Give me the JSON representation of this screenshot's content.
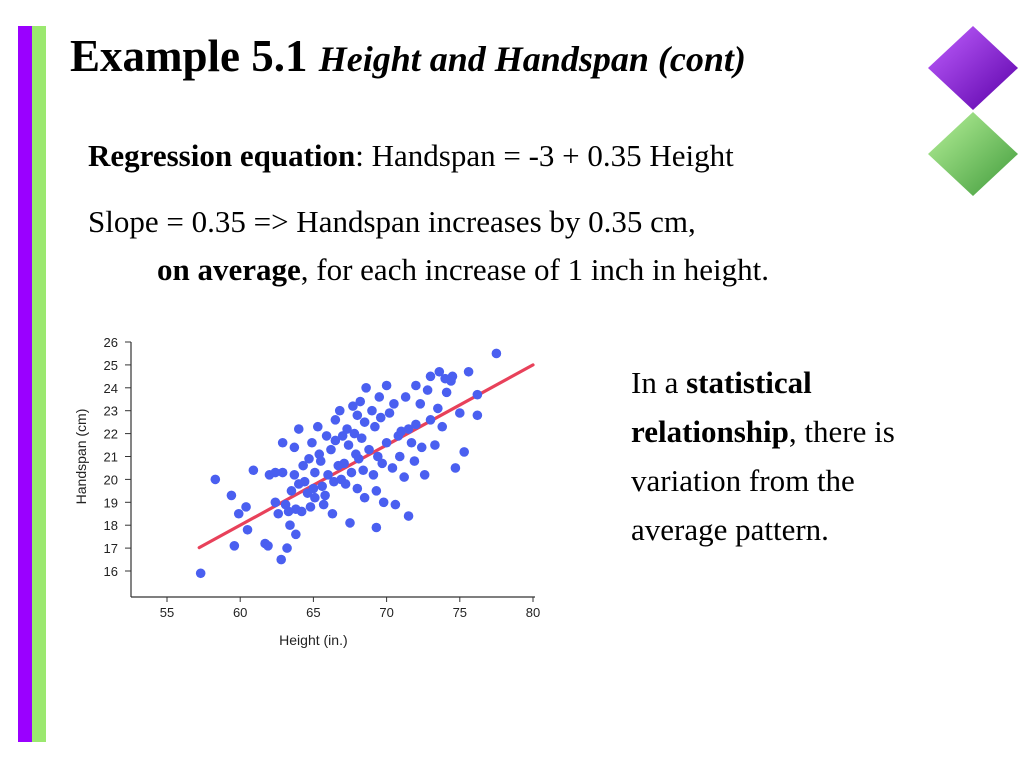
{
  "slide": {
    "title_main": "Example 5.1",
    "title_sub": "Height and Handspan (cont)",
    "regression_label": "Regression equation",
    "regression_text": ": Handspan = -3 + 0.35 Height",
    "slope_line": "Slope = 0.35 => Handspan increases by 0.35 cm,",
    "avg_bold": "on average",
    "avg_rest": ", for each increase of 1 inch in height.",
    "side_pre": "In a ",
    "side_bold": "statistical relationship",
    "side_post": ", there is variation from the average pattern."
  },
  "colors": {
    "accent_purple": "#9a00ff",
    "accent_green": "#9be86f",
    "point_color": "#4a5ff0",
    "line_color": "#e8415a"
  },
  "icons": {
    "top_right": "purple-diamond-icon",
    "bottom_right": "green-diamond-icon"
  },
  "chart_data": {
    "type": "scatter",
    "title": "",
    "xlabel": "Height (in.)",
    "ylabel": "Handspan (cm)",
    "xlim": [
      55,
      80
    ],
    "ylim": [
      15.5,
      26
    ],
    "xticks": [
      55,
      60,
      65,
      70,
      75,
      80
    ],
    "yticks": [
      16,
      17,
      18,
      19,
      20,
      21,
      22,
      23,
      24,
      25,
      26
    ],
    "grid": false,
    "regression_line": {
      "intercept": -3,
      "slope": 0.35,
      "x_range": [
        57.2,
        80
      ]
    },
    "points": [
      [
        57.3,
        15.9
      ],
      [
        58.3,
        20.0
      ],
      [
        59.4,
        19.3
      ],
      [
        59.6,
        17.1
      ],
      [
        59.9,
        18.5
      ],
      [
        60.4,
        18.8
      ],
      [
        60.5,
        17.8
      ],
      [
        60.9,
        20.4
      ],
      [
        61.7,
        17.2
      ],
      [
        61.9,
        17.1
      ],
      [
        62.0,
        20.2
      ],
      [
        62.4,
        20.3
      ],
      [
        62.4,
        19.0
      ],
      [
        62.6,
        18.5
      ],
      [
        62.8,
        16.5
      ],
      [
        62.9,
        20.3
      ],
      [
        62.9,
        21.6
      ],
      [
        63.1,
        18.9
      ],
      [
        63.2,
        17.0
      ],
      [
        63.3,
        18.6
      ],
      [
        63.4,
        18.0
      ],
      [
        63.5,
        19.5
      ],
      [
        63.7,
        21.4
      ],
      [
        63.7,
        20.2
      ],
      [
        63.8,
        18.7
      ],
      [
        63.8,
        17.6
      ],
      [
        64.0,
        22.2
      ],
      [
        64.0,
        19.8
      ],
      [
        64.2,
        18.6
      ],
      [
        64.3,
        20.6
      ],
      [
        64.4,
        19.9
      ],
      [
        64.6,
        19.4
      ],
      [
        64.7,
        20.9
      ],
      [
        64.8,
        18.8
      ],
      [
        64.9,
        21.6
      ],
      [
        65.0,
        19.6
      ],
      [
        65.1,
        20.3
      ],
      [
        65.1,
        19.2
      ],
      [
        65.3,
        22.3
      ],
      [
        65.4,
        21.1
      ],
      [
        65.5,
        20.8
      ],
      [
        65.6,
        19.7
      ],
      [
        65.7,
        18.9
      ],
      [
        65.8,
        19.3
      ],
      [
        65.9,
        21.9
      ],
      [
        66.0,
        20.2
      ],
      [
        66.2,
        21.3
      ],
      [
        66.3,
        18.5
      ],
      [
        66.4,
        19.9
      ],
      [
        66.5,
        22.6
      ],
      [
        66.5,
        21.7
      ],
      [
        66.7,
        20.6
      ],
      [
        66.8,
        23.0
      ],
      [
        66.9,
        20.0
      ],
      [
        67.0,
        21.9
      ],
      [
        67.1,
        20.7
      ],
      [
        67.2,
        19.8
      ],
      [
        67.3,
        22.2
      ],
      [
        67.4,
        21.5
      ],
      [
        67.5,
        18.1
      ],
      [
        67.6,
        20.3
      ],
      [
        67.7,
        23.2
      ],
      [
        67.8,
        22.0
      ],
      [
        67.9,
        21.1
      ],
      [
        68.0,
        22.8
      ],
      [
        68.0,
        19.6
      ],
      [
        68.1,
        20.9
      ],
      [
        68.2,
        23.4
      ],
      [
        68.3,
        21.8
      ],
      [
        68.4,
        20.4
      ],
      [
        68.5,
        19.2
      ],
      [
        68.5,
        22.5
      ],
      [
        68.6,
        24.0
      ],
      [
        68.8,
        21.3
      ],
      [
        69.0,
        23.0
      ],
      [
        69.1,
        20.2
      ],
      [
        69.2,
        22.3
      ],
      [
        69.3,
        19.5
      ],
      [
        69.3,
        17.9
      ],
      [
        69.4,
        21.0
      ],
      [
        69.5,
        23.6
      ],
      [
        69.6,
        22.7
      ],
      [
        69.7,
        20.7
      ],
      [
        69.8,
        19.0
      ],
      [
        70.0,
        24.1
      ],
      [
        70.0,
        21.6
      ],
      [
        70.2,
        22.9
      ],
      [
        70.4,
        20.5
      ],
      [
        70.5,
        23.3
      ],
      [
        70.6,
        18.9
      ],
      [
        70.8,
        21.9
      ],
      [
        70.9,
        21.0
      ],
      [
        71.0,
        22.1
      ],
      [
        71.2,
        20.1
      ],
      [
        71.3,
        23.6
      ],
      [
        71.5,
        22.2
      ],
      [
        71.5,
        18.4
      ],
      [
        71.7,
        21.6
      ],
      [
        71.9,
        20.8
      ],
      [
        72.0,
        22.4
      ],
      [
        72.0,
        24.1
      ],
      [
        72.3,
        23.3
      ],
      [
        72.4,
        21.4
      ],
      [
        72.6,
        20.2
      ],
      [
        72.8,
        23.9
      ],
      [
        73.0,
        22.6
      ],
      [
        73.0,
        24.5
      ],
      [
        73.3,
        21.5
      ],
      [
        73.5,
        23.1
      ],
      [
        73.6,
        24.7
      ],
      [
        73.8,
        22.3
      ],
      [
        74.0,
        24.4
      ],
      [
        74.1,
        23.8
      ],
      [
        74.4,
        24.3
      ],
      [
        74.5,
        24.5
      ],
      [
        74.7,
        20.5
      ],
      [
        75.0,
        22.9
      ],
      [
        75.3,
        21.2
      ],
      [
        75.6,
        24.7
      ],
      [
        76.2,
        23.7
      ],
      [
        76.2,
        22.8
      ],
      [
        77.5,
        25.5
      ]
    ]
  }
}
